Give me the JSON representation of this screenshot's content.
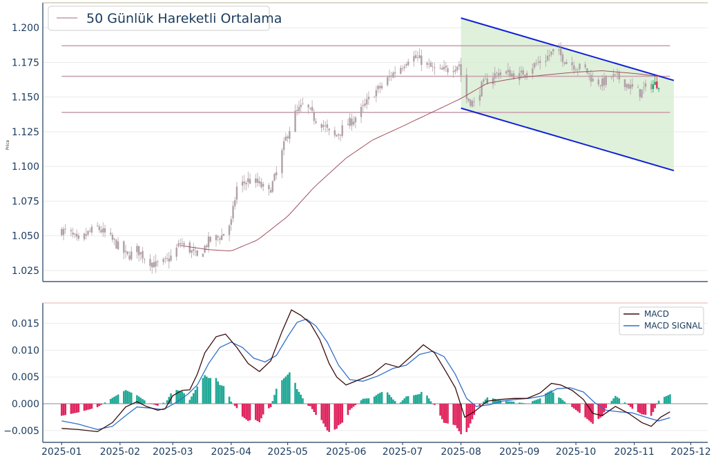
{
  "chart_data": [
    {
      "type": "candlestick",
      "ylabel": "Price",
      "ylim": [
        1.017,
        1.218
      ],
      "yticks": [
        "1.025",
        "1.050",
        "1.075",
        "1.100",
        "1.125",
        "1.150",
        "1.175",
        "1.200"
      ],
      "ytick_values": [
        1.025,
        1.05,
        1.075,
        1.1,
        1.125,
        1.15,
        1.175,
        1.2
      ],
      "grid": true,
      "legend": {
        "position": "top-left",
        "entries": [
          "50 Günlük Hareketli Ortalama"
        ]
      },
      "horizontal_levels": [
        1.187,
        1.165,
        1.139
      ],
      "channel": {
        "upper": {
          "start": [
            "2025-08-01",
            1.207
          ],
          "end": [
            "2025-11-22",
            1.162
          ]
        },
        "lower": {
          "start": [
            "2025-08-01",
            1.142
          ],
          "end": [
            "2025-11-22",
            1.097
          ]
        }
      },
      "close_anchors": [
        [
          "2025-01-01",
          1.054
        ],
        [
          "2025-01-06",
          1.051
        ],
        [
          "2025-01-10",
          1.045
        ],
        [
          "2025-01-15",
          1.052
        ],
        [
          "2025-01-20",
          1.056
        ],
        [
          "2025-01-27",
          1.048
        ],
        [
          "2025-02-01",
          1.041
        ],
        [
          "2025-02-05",
          1.035
        ],
        [
          "2025-02-10",
          1.04
        ],
        [
          "2025-02-15",
          1.033
        ],
        [
          "2025-02-20",
          1.029
        ],
        [
          "2025-02-25",
          1.031
        ],
        [
          "2025-03-01",
          1.036
        ],
        [
          "2025-03-05",
          1.045
        ],
        [
          "2025-03-10",
          1.04
        ],
        [
          "2025-03-14",
          1.034
        ],
        [
          "2025-03-20",
          1.046
        ],
        [
          "2025-03-27",
          1.05
        ],
        [
          "2025-04-01",
          1.06
        ],
        [
          "2025-04-04",
          1.085
        ],
        [
          "2025-04-10",
          1.09
        ],
        [
          "2025-04-15",
          1.088
        ],
        [
          "2025-04-21",
          1.081
        ],
        [
          "2025-04-25",
          1.095
        ],
        [
          "2025-04-30",
          1.12
        ],
        [
          "2025-05-05",
          1.138
        ],
        [
          "2025-05-10",
          1.145
        ],
        [
          "2025-05-15",
          1.135
        ],
        [
          "2025-05-20",
          1.13
        ],
        [
          "2025-05-25",
          1.12
        ],
        [
          "2025-05-30",
          1.127
        ],
        [
          "2025-06-05",
          1.134
        ],
        [
          "2025-06-10",
          1.142
        ],
        [
          "2025-06-15",
          1.152
        ],
        [
          "2025-06-20",
          1.158
        ],
        [
          "2025-06-25",
          1.166
        ],
        [
          "2025-07-01",
          1.173
        ],
        [
          "2025-07-05",
          1.18
        ],
        [
          "2025-07-10",
          1.177
        ],
        [
          "2025-07-15",
          1.172
        ],
        [
          "2025-07-20",
          1.168
        ],
        [
          "2025-07-25",
          1.17
        ],
        [
          "2025-07-31",
          1.174
        ],
        [
          "2025-08-03",
          1.15
        ],
        [
          "2025-08-08",
          1.145
        ],
        [
          "2025-08-12",
          1.158
        ],
        [
          "2025-08-17",
          1.165
        ],
        [
          "2025-08-22",
          1.168
        ],
        [
          "2025-08-27",
          1.167
        ],
        [
          "2025-09-01",
          1.165
        ],
        [
          "2025-09-05",
          1.17
        ],
        [
          "2025-09-10",
          1.174
        ],
        [
          "2025-09-15",
          1.178
        ],
        [
          "2025-09-20",
          1.184
        ],
        [
          "2025-09-25",
          1.177
        ],
        [
          "2025-10-01",
          1.172
        ],
        [
          "2025-10-06",
          1.17
        ],
        [
          "2025-10-10",
          1.162
        ],
        [
          "2025-10-15",
          1.16
        ],
        [
          "2025-10-20",
          1.165
        ],
        [
          "2025-10-25",
          1.163
        ],
        [
          "2025-10-30",
          1.157
        ],
        [
          "2025-11-04",
          1.153
        ],
        [
          "2025-11-08",
          1.158
        ],
        [
          "2025-11-14",
          1.16
        ]
      ],
      "sma50_anchors": [
        [
          "2025-03-05",
          1.043
        ],
        [
          "2025-03-20",
          1.04
        ],
        [
          "2025-04-01",
          1.039
        ],
        [
          "2025-04-15",
          1.047
        ],
        [
          "2025-05-01",
          1.064
        ],
        [
          "2025-05-15",
          1.085
        ],
        [
          "2025-06-01",
          1.106
        ],
        [
          "2025-06-15",
          1.119
        ],
        [
          "2025-07-01",
          1.129
        ],
        [
          "2025-07-15",
          1.138
        ],
        [
          "2025-08-01",
          1.149
        ],
        [
          "2025-08-15",
          1.16
        ],
        [
          "2025-09-01",
          1.164
        ],
        [
          "2025-09-15",
          1.166
        ],
        [
          "2025-10-01",
          1.168
        ],
        [
          "2025-10-15",
          1.169
        ],
        [
          "2025-11-01",
          1.167
        ],
        [
          "2025-11-14",
          1.165
        ]
      ]
    },
    {
      "type": "macd",
      "xlim": [
        "2024-12-22",
        "2025-12-10"
      ],
      "xticks": [
        "2025-01",
        "2025-02",
        "2025-03",
        "2025-04",
        "2025-05",
        "2025-06",
        "2025-07",
        "2025-08",
        "2025-09",
        "2025-10",
        "2025-11",
        "2025-12"
      ],
      "xtick_dates": [
        "2025-01-01",
        "2025-02-01",
        "2025-03-01",
        "2025-04-01",
        "2025-05-01",
        "2025-06-01",
        "2025-07-01",
        "2025-08-01",
        "2025-09-01",
        "2025-10-01",
        "2025-11-01",
        "2025-12-01"
      ],
      "ylim": [
        -0.0072,
        0.0188
      ],
      "yticks": [
        "0.015",
        "0.010",
        "0.005",
        "0.000",
        "−0.005"
      ],
      "ytick_values": [
        0.015,
        0.01,
        0.005,
        0,
        -0.005
      ],
      "legend": {
        "position": "top-right",
        "entries": [
          "MACD",
          "MACD SIGNAL"
        ]
      },
      "series": [
        {
          "name": "MACD",
          "points": [
            [
              "2025-01-01",
              -0.0046
            ],
            [
              "2025-01-10",
              -0.0048
            ],
            [
              "2025-01-20",
              -0.0052
            ],
            [
              "2025-01-28",
              -0.0035
            ],
            [
              "2025-02-04",
              -0.0006
            ],
            [
              "2025-02-10",
              0.0004
            ],
            [
              "2025-02-15",
              -0.0005
            ],
            [
              "2025-02-21",
              -0.0012
            ],
            [
              "2025-02-25",
              -0.0009
            ],
            [
              "2025-03-01",
              0.0015
            ],
            [
              "2025-03-06",
              0.0025
            ],
            [
              "2025-03-10",
              0.0026
            ],
            [
              "2025-03-14",
              0.0055
            ],
            [
              "2025-03-18",
              0.0095
            ],
            [
              "2025-03-24",
              0.0125
            ],
            [
              "2025-03-29",
              0.013
            ],
            [
              "2025-04-04",
              0.0105
            ],
            [
              "2025-04-10",
              0.0075
            ],
            [
              "2025-04-16",
              0.006
            ],
            [
              "2025-04-22",
              0.008
            ],
            [
              "2025-04-28",
              0.0135
            ],
            [
              "2025-05-03",
              0.0175
            ],
            [
              "2025-05-08",
              0.0165
            ],
            [
              "2025-05-13",
              0.015
            ],
            [
              "2025-05-18",
              0.012
            ],
            [
              "2025-05-23",
              0.0075
            ],
            [
              "2025-05-27",
              0.005
            ],
            [
              "2025-06-01",
              0.0035
            ],
            [
              "2025-06-08",
              0.0045
            ],
            [
              "2025-06-15",
              0.0055
            ],
            [
              "2025-06-22",
              0.0075
            ],
            [
              "2025-06-29",
              0.0068
            ],
            [
              "2025-07-06",
              0.009
            ],
            [
              "2025-07-12",
              0.011
            ],
            [
              "2025-07-18",
              0.0095
            ],
            [
              "2025-07-24",
              0.006
            ],
            [
              "2025-07-29",
              0.003
            ],
            [
              "2025-08-03",
              -0.0025
            ],
            [
              "2025-08-08",
              -0.0015
            ],
            [
              "2025-08-15",
              0.0005
            ],
            [
              "2025-08-22",
              0.0008
            ],
            [
              "2025-08-29",
              0.001
            ],
            [
              "2025-09-05",
              0.001
            ],
            [
              "2025-09-12",
              0.002
            ],
            [
              "2025-09-18",
              0.0038
            ],
            [
              "2025-09-23",
              0.0035
            ],
            [
              "2025-09-29",
              0.0025
            ],
            [
              "2025-10-05",
              0.0008
            ],
            [
              "2025-10-10",
              -0.0018
            ],
            [
              "2025-10-15",
              -0.0022
            ],
            [
              "2025-10-22",
              -0.0005
            ],
            [
              "2025-10-29",
              -0.0018
            ],
            [
              "2025-11-05",
              -0.0035
            ],
            [
              "2025-11-10",
              -0.0042
            ],
            [
              "2025-11-15",
              -0.0025
            ],
            [
              "2025-11-20",
              -0.0015
            ]
          ]
        },
        {
          "name": "MACD SIGNAL",
          "points": [
            [
              "2025-01-01",
              -0.0032
            ],
            [
              "2025-01-10",
              -0.0038
            ],
            [
              "2025-01-20",
              -0.0048
            ],
            [
              "2025-01-28",
              -0.0042
            ],
            [
              "2025-02-04",
              -0.0022
            ],
            [
              "2025-02-10",
              -0.0006
            ],
            [
              "2025-02-17",
              -0.0008
            ],
            [
              "2025-02-24",
              -0.0011
            ],
            [
              "2025-03-03",
              0.0003
            ],
            [
              "2025-03-09",
              0.0018
            ],
            [
              "2025-03-14",
              0.0035
            ],
            [
              "2025-03-20",
              0.0075
            ],
            [
              "2025-03-26",
              0.0105
            ],
            [
              "2025-04-01",
              0.0115
            ],
            [
              "2025-04-07",
              0.0105
            ],
            [
              "2025-04-13",
              0.0085
            ],
            [
              "2025-04-19",
              0.0078
            ],
            [
              "2025-04-25",
              0.009
            ],
            [
              "2025-05-01",
              0.0125
            ],
            [
              "2025-05-06",
              0.0152
            ],
            [
              "2025-05-11",
              0.0158
            ],
            [
              "2025-05-16",
              0.0145
            ],
            [
              "2025-05-22",
              0.0115
            ],
            [
              "2025-05-28",
              0.0072
            ],
            [
              "2025-06-03",
              0.0045
            ],
            [
              "2025-06-10",
              0.0042
            ],
            [
              "2025-06-18",
              0.0052
            ],
            [
              "2025-06-26",
              0.0066
            ],
            [
              "2025-07-03",
              0.0072
            ],
            [
              "2025-07-10",
              0.0092
            ],
            [
              "2025-07-17",
              0.0098
            ],
            [
              "2025-07-23",
              0.0088
            ],
            [
              "2025-07-29",
              0.0055
            ],
            [
              "2025-08-04",
              0.001
            ],
            [
              "2025-08-09",
              -0.0005
            ],
            [
              "2025-08-16",
              -0.0002
            ],
            [
              "2025-08-23",
              0.0005
            ],
            [
              "2025-08-30",
              0.0008
            ],
            [
              "2025-09-06",
              0.001
            ],
            [
              "2025-09-14",
              0.0015
            ],
            [
              "2025-09-21",
              0.0028
            ],
            [
              "2025-09-28",
              0.003
            ],
            [
              "2025-10-05",
              0.0022
            ],
            [
              "2025-10-11",
              0.0002
            ],
            [
              "2025-10-17",
              -0.0012
            ],
            [
              "2025-10-24",
              -0.0015
            ],
            [
              "2025-10-31",
              -0.0017
            ],
            [
              "2025-11-07",
              -0.0025
            ],
            [
              "2025-11-14",
              -0.0032
            ],
            [
              "2025-11-20",
              -0.0026
            ]
          ]
        }
      ]
    }
  ]
}
